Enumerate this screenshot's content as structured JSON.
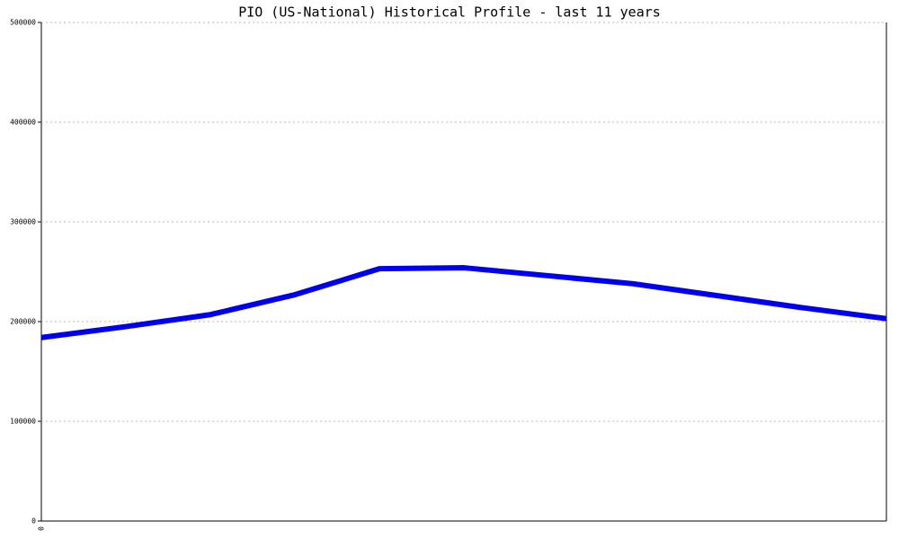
{
  "chart_data": {
    "type": "line",
    "title": "PIO (US-National) Historical Profile - last 11 years",
    "categories": [
      "0",
      null,
      null,
      null,
      null,
      null,
      null,
      null,
      null,
      null,
      null
    ],
    "series": [
      {
        "name": "PIO",
        "color": "#0000ee",
        "values": [
          184000,
          195000,
          207000,
          227000,
          253000,
          254000,
          246000,
          238000,
          226000,
          214000,
          203000
        ]
      }
    ],
    "ylim": [
      0,
      500000
    ],
    "yticks": [
      0,
      100000,
      200000,
      300000,
      400000,
      500000
    ],
    "grid": true
  }
}
